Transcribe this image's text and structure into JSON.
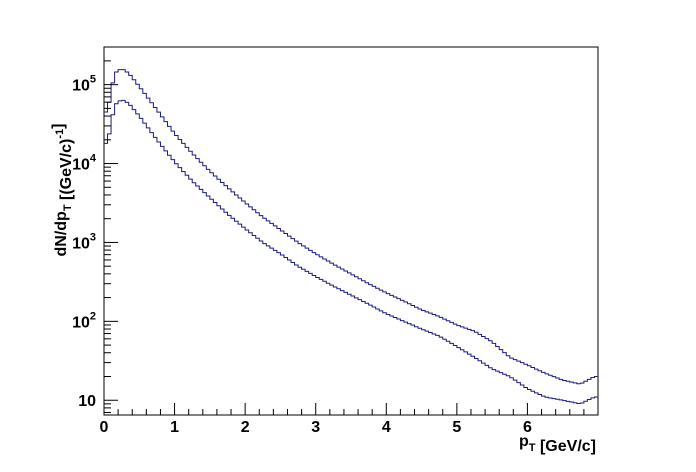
{
  "chart_data": {
    "type": "line",
    "style": "step-histogram",
    "log_y": true,
    "xlabel": "p_T [GeV/c]",
    "ylabel": "dN/dp_T [(GeV/c)^-1]",
    "xlim": [
      0,
      7
    ],
    "ylim": [
      6.5,
      300000
    ],
    "x_ticks": [
      "0",
      "1",
      "2",
      "3",
      "4",
      "5",
      "6"
    ],
    "y_ticks": [
      {
        "base": "10",
        "exp": "",
        "value": 10
      },
      {
        "base": "10",
        "exp": "2",
        "value": 100
      },
      {
        "base": "10",
        "exp": "3",
        "value": 1000
      },
      {
        "base": "10",
        "exp": "4",
        "value": 10000
      },
      {
        "base": "10",
        "exp": "5",
        "value": 100000
      }
    ],
    "line_color": "#1a1a80",
    "series": [
      {
        "x": [
          0.05,
          0.15,
          0.25,
          0.35,
          0.5,
          0.75,
          1.0,
          1.25,
          1.5,
          1.75,
          2.0,
          2.25,
          2.5,
          2.75,
          3.0,
          3.25,
          3.5,
          3.75,
          4.0,
          4.25,
          4.5,
          4.75,
          5.0,
          5.25,
          5.5,
          5.75,
          6.0,
          6.25,
          6.5,
          6.75,
          6.95
        ],
        "values": [
          45000,
          140000,
          160000,
          140000,
          95000,
          48000,
          24000,
          13500,
          8000,
          5000,
          3200,
          2100,
          1450,
          1000,
          720,
          530,
          400,
          300,
          230,
          180,
          140,
          115,
          90,
          75,
          55,
          35,
          28,
          22,
          18,
          16,
          20
        ]
      },
      {
        "x": [
          0.05,
          0.15,
          0.25,
          0.35,
          0.5,
          0.75,
          1.0,
          1.25,
          1.5,
          1.75,
          2.0,
          2.25,
          2.5,
          2.75,
          3.0,
          3.25,
          3.5,
          3.75,
          4.0,
          4.25,
          4.5,
          4.75,
          5.0,
          5.25,
          5.5,
          5.75,
          6.0,
          6.25,
          6.5,
          6.75,
          6.95
        ],
        "values": [
          18000,
          55000,
          65000,
          58000,
          40000,
          20000,
          10500,
          6000,
          3700,
          2300,
          1500,
          1000,
          720,
          500,
          370,
          280,
          215,
          165,
          125,
          100,
          80,
          65,
          48,
          35,
          25,
          20,
          14,
          11,
          10,
          9,
          11
        ]
      }
    ]
  }
}
